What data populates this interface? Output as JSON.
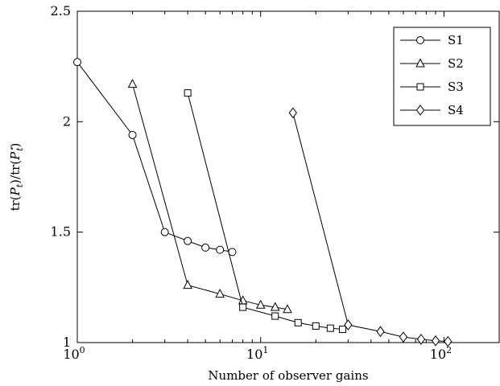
{
  "chart_data": {
    "type": "line",
    "xscale": "log",
    "xlim": [
      1,
      200
    ],
    "ylim": [
      1,
      2.5
    ],
    "grid": false,
    "legend_position": "top-right",
    "xlabel": "Number of observer gains",
    "ylabel": "tr(Pt)/tr(Pt*)",
    "ylabel_parts": {
      "tr_open": "tr(",
      "p": "P",
      "sub": "t",
      "close": ")",
      "slash": "/",
      "star": "⋆"
    },
    "x_ticks": [
      {
        "value": 1,
        "base": "10",
        "exp": "0"
      },
      {
        "value": 10,
        "base": "10",
        "exp": "1"
      },
      {
        "value": 100,
        "base": "10",
        "exp": "2"
      }
    ],
    "y_ticks": [
      {
        "value": 1,
        "label": "1"
      },
      {
        "value": 1.5,
        "label": "1.5"
      },
      {
        "value": 2,
        "label": "2"
      },
      {
        "value": 2.5,
        "label": "2.5"
      }
    ],
    "series": [
      {
        "name": "S1",
        "marker": "circle",
        "x": [
          1,
          2,
          3,
          4,
          5,
          6,
          7
        ],
        "y": [
          2.27,
          1.94,
          1.5,
          1.46,
          1.43,
          1.42,
          1.41
        ]
      },
      {
        "name": "S2",
        "marker": "triangle",
        "x": [
          2,
          4,
          6,
          8,
          10,
          12,
          14
        ],
        "y": [
          2.17,
          1.26,
          1.22,
          1.19,
          1.17,
          1.16,
          1.15
        ]
      },
      {
        "name": "S3",
        "marker": "square",
        "x": [
          4,
          8,
          12,
          16,
          20,
          24,
          28
        ],
        "y": [
          2.13,
          1.16,
          1.12,
          1.09,
          1.075,
          1.065,
          1.06
        ]
      },
      {
        "name": "S4",
        "marker": "diamond",
        "x": [
          15,
          30,
          45,
          60,
          75,
          90,
          105
        ],
        "y": [
          2.04,
          1.08,
          1.05,
          1.025,
          1.015,
          1.008,
          1.005
        ]
      }
    ]
  }
}
